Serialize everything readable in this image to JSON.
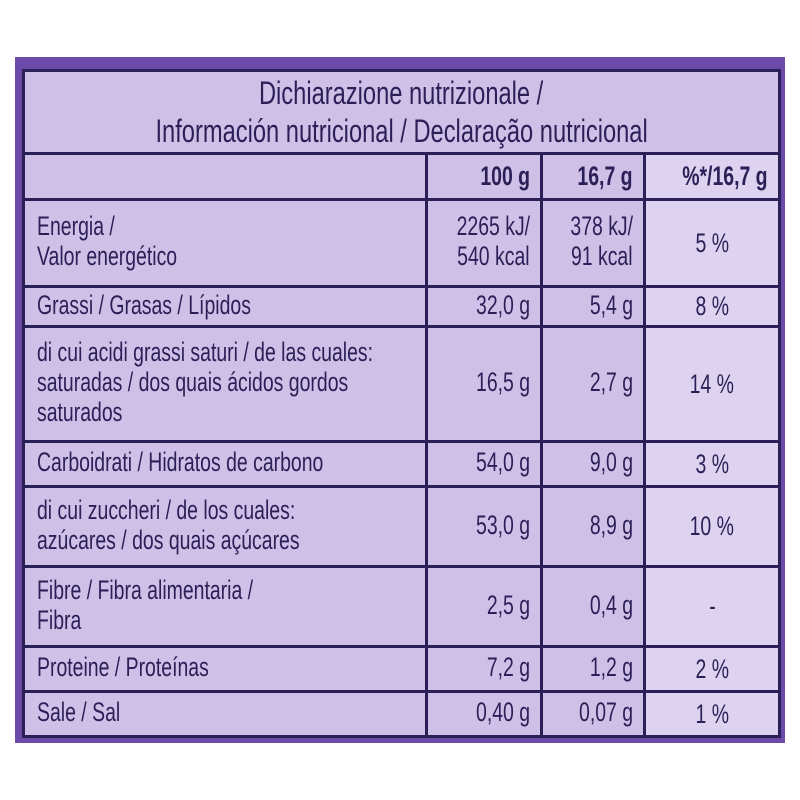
{
  "title": {
    "line1": "Dichiarazione nutrizionale /",
    "line2": "Información nutricional / Declaração nutricional"
  },
  "columns": [
    "100 g",
    "16,7 g",
    "%*/16,7 g"
  ],
  "rows": [
    {
      "label": [
        "Energia /",
        "Valor energético"
      ],
      "v100": [
        "2265 kJ/",
        "540 kcal"
      ],
      "vportion": [
        "378 kJ/",
        "91 kcal"
      ],
      "pct": "5 %"
    },
    {
      "label": [
        "Grassi / Grasas / Lípidos"
      ],
      "v100": [
        "32,0 g"
      ],
      "vportion": [
        "5,4 g"
      ],
      "pct": "8 %"
    },
    {
      "label": [
        "di cui acidi grassi saturi / de las cuales:",
        "saturadas / dos quais ácidos gordos",
        "saturados"
      ],
      "v100": [
        "16,5 g"
      ],
      "vportion": [
        "2,7 g"
      ],
      "pct": "14 %"
    },
    {
      "label": [
        "Carboidrati / Hidratos de carbono"
      ],
      "v100": [
        "54,0 g"
      ],
      "vportion": [
        "9,0 g"
      ],
      "pct": "3 %"
    },
    {
      "label": [
        "di cui zuccheri / de los cuales:",
        "azúcares / dos quais açúcares"
      ],
      "v100": [
        "53,0 g"
      ],
      "vportion": [
        "8,9 g"
      ],
      "pct": "10 %"
    },
    {
      "label": [
        "Fibre / Fibra alimentaria /",
        "Fibra"
      ],
      "v100": [
        "2,5 g"
      ],
      "vportion": [
        "0,4 g"
      ],
      "pct": "-"
    },
    {
      "label": [
        "Proteine / Proteínas"
      ],
      "v100": [
        "7,2 g"
      ],
      "vportion": [
        "1,2 g"
      ],
      "pct": "2 %"
    },
    {
      "label": [
        "Sale / Sal"
      ],
      "v100": [
        "0,40 g"
      ],
      "vportion": [
        "0,07 g"
      ],
      "pct": "1 %"
    }
  ],
  "colors": {
    "background": "#6b4aa9",
    "cell": "#cfc0e8",
    "text": "#2b1f57"
  }
}
